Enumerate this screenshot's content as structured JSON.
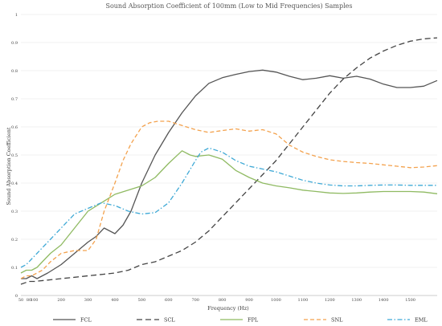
{
  "chart_data": {
    "type": "line",
    "title": "Sound Absorption Coefficient of 100mm (Low to Mid Frequencies) Samples",
    "xlabel": "Frequency (Hz)",
    "ylabel": "Sound Absorption Coefficient",
    "xlim": [
      50,
      1600
    ],
    "ylim": [
      0,
      1
    ],
    "x_ticks": [
      50,
      80,
      100,
      200,
      300,
      400,
      500,
      600,
      700,
      800,
      900,
      1000,
      1100,
      1200,
      1300,
      1400,
      1500
    ],
    "x_tick_labels": [
      "50",
      "80",
      "100",
      "200",
      "300",
      "400",
      "500",
      "600",
      "700",
      "800",
      "900",
      "1000",
      "1100",
      "1200",
      "1300",
      "1400",
      "1500"
    ],
    "y_ticks": [
      0,
      0.1,
      0.2,
      0.3,
      0.4,
      0.5,
      0.6,
      0.7,
      0.8,
      0.9,
      1
    ],
    "y_tick_labels": [
      "0",
      "0.1",
      "0.2",
      "0.3",
      "0.4",
      "0.5",
      "0.6",
      "0.7",
      "0.8",
      "0.9",
      "1"
    ],
    "grid": "horizontal",
    "legend_position": "bottom",
    "series": [
      {
        "name": "FCL",
        "color": "#555555",
        "dash": "solid",
        "x": [
          50,
          70,
          90,
          110,
          130,
          150,
          200,
          250,
          300,
          330,
          360,
          380,
          400,
          430,
          460,
          500,
          550,
          600,
          650,
          700,
          750,
          800,
          850,
          900,
          950,
          1000,
          1050,
          1100,
          1150,
          1200,
          1250,
          1300,
          1350,
          1400,
          1450,
          1500,
          1550,
          1600
        ],
        "y": [
          0.06,
          0.06,
          0.07,
          0.06,
          0.07,
          0.08,
          0.11,
          0.15,
          0.19,
          0.21,
          0.24,
          0.23,
          0.22,
          0.25,
          0.3,
          0.4,
          0.5,
          0.58,
          0.65,
          0.71,
          0.755,
          0.775,
          0.787,
          0.797,
          0.802,
          0.795,
          0.78,
          0.768,
          0.773,
          0.782,
          0.773,
          0.78,
          0.77,
          0.752,
          0.74,
          0.74,
          0.745,
          0.765
        ]
      },
      {
        "name": "SCL",
        "color": "#444444",
        "dash": "long-dash",
        "x": [
          50,
          80,
          100,
          150,
          200,
          250,
          300,
          350,
          400,
          450,
          500,
          550,
          600,
          650,
          700,
          750,
          800,
          850,
          900,
          950,
          1000,
          1050,
          1100,
          1150,
          1200,
          1250,
          1300,
          1350,
          1400,
          1450,
          1500,
          1550,
          1600
        ],
        "y": [
          0.04,
          0.05,
          0.05,
          0.055,
          0.06,
          0.065,
          0.07,
          0.075,
          0.08,
          0.09,
          0.11,
          0.12,
          0.14,
          0.16,
          0.19,
          0.23,
          0.28,
          0.33,
          0.38,
          0.43,
          0.48,
          0.54,
          0.6,
          0.66,
          0.72,
          0.77,
          0.81,
          0.845,
          0.87,
          0.89,
          0.905,
          0.913,
          0.917
        ]
      },
      {
        "name": "FPL",
        "color": "#8fba62",
        "dash": "solid",
        "x": [
          50,
          70,
          90,
          110,
          130,
          160,
          200,
          250,
          300,
          350,
          400,
          450,
          500,
          550,
          600,
          650,
          680,
          700,
          750,
          800,
          850,
          900,
          950,
          1000,
          1050,
          1100,
          1150,
          1200,
          1250,
          1300,
          1350,
          1400,
          1450,
          1500,
          1550,
          1600
        ],
        "y": [
          0.08,
          0.09,
          0.09,
          0.1,
          0.12,
          0.15,
          0.18,
          0.24,
          0.3,
          0.33,
          0.36,
          0.375,
          0.39,
          0.42,
          0.47,
          0.515,
          0.5,
          0.495,
          0.5,
          0.485,
          0.445,
          0.42,
          0.4,
          0.39,
          0.383,
          0.375,
          0.37,
          0.365,
          0.363,
          0.365,
          0.368,
          0.37,
          0.37,
          0.37,
          0.368,
          0.362
        ]
      },
      {
        "name": "SNL",
        "color": "#f3a24e",
        "dash": "dash",
        "x": [
          50,
          70,
          90,
          110,
          130,
          160,
          200,
          250,
          300,
          330,
          360,
          400,
          430,
          460,
          500,
          530,
          560,
          600,
          650,
          700,
          750,
          800,
          850,
          900,
          950,
          1000,
          1050,
          1100,
          1150,
          1200,
          1250,
          1300,
          1350,
          1400,
          1450,
          1500,
          1550,
          1600
        ],
        "y": [
          0.06,
          0.07,
          0.07,
          0.08,
          0.09,
          0.12,
          0.15,
          0.16,
          0.16,
          0.2,
          0.3,
          0.4,
          0.48,
          0.54,
          0.6,
          0.615,
          0.62,
          0.62,
          0.605,
          0.59,
          0.58,
          0.587,
          0.593,
          0.585,
          0.59,
          0.575,
          0.535,
          0.51,
          0.495,
          0.483,
          0.477,
          0.473,
          0.47,
          0.465,
          0.46,
          0.455,
          0.457,
          0.462
        ]
      },
      {
        "name": "EML",
        "color": "#3fa9d6",
        "dash": "dash-dot",
        "x": [
          50,
          70,
          90,
          110,
          130,
          160,
          200,
          250,
          300,
          350,
          400,
          450,
          500,
          550,
          600,
          650,
          700,
          720,
          750,
          800,
          850,
          900,
          950,
          1000,
          1050,
          1100,
          1150,
          1200,
          1250,
          1300,
          1350,
          1400,
          1450,
          1500,
          1550,
          1600
        ],
        "y": [
          0.1,
          0.11,
          0.13,
          0.15,
          0.17,
          0.2,
          0.24,
          0.29,
          0.31,
          0.33,
          0.32,
          0.3,
          0.29,
          0.295,
          0.33,
          0.4,
          0.48,
          0.51,
          0.525,
          0.51,
          0.48,
          0.46,
          0.45,
          0.44,
          0.425,
          0.41,
          0.4,
          0.393,
          0.39,
          0.39,
          0.392,
          0.393,
          0.393,
          0.392,
          0.392,
          0.392
        ]
      }
    ]
  }
}
